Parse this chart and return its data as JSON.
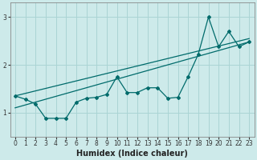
{
  "xlabel": "Humidex (Indice chaleur)",
  "background_color": "#cdeaea",
  "grid_color": "#aad4d4",
  "line_color": "#006b6b",
  "xlim": [
    -0.5,
    23.5
  ],
  "ylim": [
    0.5,
    3.3
  ],
  "xticks": [
    0,
    1,
    2,
    3,
    4,
    5,
    6,
    7,
    8,
    9,
    10,
    11,
    12,
    13,
    14,
    15,
    16,
    17,
    18,
    19,
    20,
    21,
    22,
    23
  ],
  "yticks": [
    1,
    2,
    3
  ],
  "series1_x": [
    0,
    1,
    2,
    3,
    4,
    5,
    6,
    7,
    8,
    9,
    10,
    11,
    12,
    13,
    14,
    15,
    16,
    17,
    18,
    19,
    20,
    21,
    22,
    23
  ],
  "series1_y": [
    1.35,
    1.28,
    1.18,
    0.88,
    0.88,
    0.88,
    1.22,
    1.3,
    1.32,
    1.38,
    1.75,
    1.42,
    1.42,
    1.52,
    1.52,
    1.3,
    1.32,
    1.75,
    2.22,
    3.0,
    2.38,
    2.7,
    2.38,
    2.48
  ],
  "line1_x0": 0,
  "line1_y0": 1.35,
  "line1_x1": 23,
  "line1_y1": 2.55,
  "line2_x0": 0,
  "line2_y0": 1.1,
  "line2_x1": 23,
  "line2_y1": 2.48
}
